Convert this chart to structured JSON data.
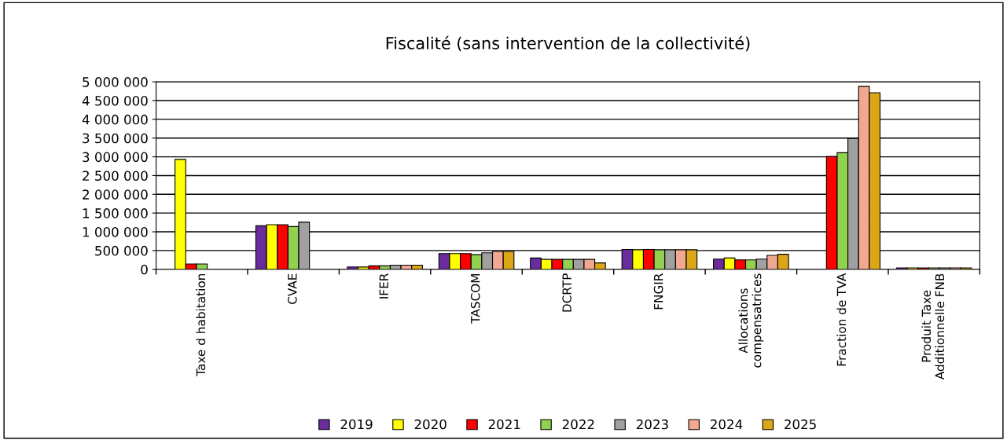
{
  "chart_data": {
    "type": "bar",
    "title": "Fiscalité (sans intervention de la collectivité)",
    "categories": [
      "Taxe d habitation",
      "CVAE",
      "IFER",
      "TASCOM",
      "DCRTP",
      "FNGIR",
      "Allocations\ncompensatrices",
      "Fraction de TVA",
      "Produit Taxe\nAdditionnelle FNB"
    ],
    "series": [
      {
        "name": "2019",
        "color": "#6a2c9c",
        "values": [
          null,
          1160000,
          63000,
          420000,
          300000,
          530000,
          272000,
          null,
          35000
        ]
      },
      {
        "name": "2020",
        "color": "#ffff00",
        "values": [
          2930000,
          1190000,
          60000,
          420000,
          265000,
          520000,
          300000,
          null,
          35000
        ]
      },
      {
        "name": "2021",
        "color": "#ff0000",
        "values": [
          140000,
          1190000,
          90000,
          420000,
          265000,
          530000,
          250000,
          3010000,
          35000
        ]
      },
      {
        "name": "2022",
        "color": "#92d050",
        "values": [
          140000,
          1140000,
          90000,
          390000,
          265000,
          520000,
          250000,
          3110000,
          35000
        ]
      },
      {
        "name": "2023",
        "color": "#a0a0a0",
        "values": [
          null,
          1260000,
          110000,
          440000,
          265000,
          520000,
          272000,
          3490000,
          35000
        ]
      },
      {
        "name": "2024",
        "color": "#f2a890",
        "values": [
          null,
          null,
          110000,
          475000,
          265000,
          520000,
          370000,
          4880000,
          35000
        ]
      },
      {
        "name": "2025",
        "color": "#dca617",
        "values": [
          null,
          null,
          110000,
          475000,
          170000,
          520000,
          400000,
          4710000,
          35000
        ]
      }
    ],
    "ylim": [
      0,
      5000000
    ],
    "yticks": [
      0,
      {
        "value": 500000,
        "label": "500 000"
      },
      {
        "value": 1000000,
        "label": "1 000 000"
      },
      {
        "value": 1500000,
        "label": "1 500 000"
      },
      {
        "value": 2000000,
        "label": "2 000 000"
      },
      {
        "value": 2500000,
        "label": "2 500 000"
      },
      {
        "value": 3000000,
        "label": "3 000 000"
      },
      {
        "value": 3500000,
        "label": "3 500 000"
      },
      {
        "value": 4000000,
        "label": "4 000 000"
      },
      {
        "value": 4500000,
        "label": "4 500 000"
      },
      {
        "value": 5000000,
        "label": "5 000 000"
      }
    ],
    "grid": "y",
    "legend": "bottom"
  }
}
